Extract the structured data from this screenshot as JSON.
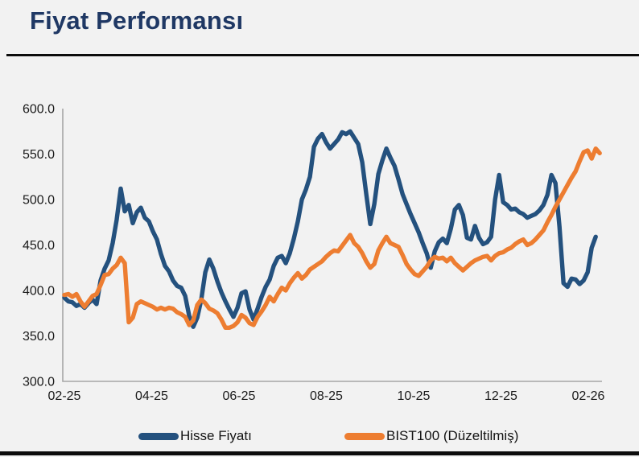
{
  "page": {
    "title": "Fiyat Performansı"
  },
  "chart_data": {
    "type": "line",
    "title": "Fiyat Performansı",
    "grid": false,
    "legend_position": "bottom",
    "colors": {
      "accent_title": "#1f3864",
      "axis_line": "#a6a6a6",
      "background": "#f2f2f2",
      "rule": "#0c0c0c"
    },
    "x_axis": {
      "tick_labels": [
        "02-25",
        "04-25",
        "06-25",
        "08-25",
        "10-25",
        "12-25",
        "02-26"
      ],
      "tick_months": [
        0,
        2,
        4,
        6,
        8,
        10,
        12
      ],
      "range_months": [
        0,
        12.3
      ]
    },
    "y_axis": {
      "tick_labels": [
        "300.0",
        "350.0",
        "400.0",
        "450.0",
        "500.0",
        "550.0",
        "600.0"
      ],
      "ylim": [
        300,
        600
      ],
      "tick_step": 50
    },
    "series": [
      {
        "name": "Hisse Fiyatı",
        "color": "#24517e",
        "x_start_month": 0,
        "x_step_month": 0.0922,
        "values": [
          392,
          388,
          387,
          383,
          385,
          381,
          386,
          390,
          385,
          411,
          424,
          433,
          452,
          478,
          512,
          487,
          494,
          474,
          486,
          491,
          480,
          476,
          465,
          456,
          440,
          427,
          421,
          411,
          405,
          403,
          394,
          372,
          360,
          370,
          390,
          420,
          434,
          424,
          410,
          398,
          388,
          379,
          371,
          381,
          397,
          399,
          379,
          368,
          380,
          393,
          404,
          412,
          427,
          436,
          438,
          430,
          441,
          457,
          476,
          500,
          511,
          525,
          558,
          567,
          572,
          563,
          556,
          561,
          566,
          574,
          572,
          575,
          568,
          561,
          541,
          506,
          473,
          495,
          528,
          543,
          556,
          546,
          537,
          522,
          506,
          495,
          484,
          474,
          464,
          452,
          441,
          425,
          443,
          453,
          457,
          452,
          468,
          489,
          494,
          483,
          458,
          456,
          471,
          458,
          451,
          453,
          459,
          500,
          527,
          497,
          494,
          489,
          490,
          486,
          484,
          480,
          482,
          484,
          488,
          494,
          505,
          527,
          518,
          470,
          408,
          404,
          413,
          412,
          407,
          411,
          420,
          447,
          459
        ]
      },
      {
        "name": "BIST100 (Düzeltilmiş)",
        "color": "#ed7d31",
        "x_start_month": 0,
        "x_step_month": 0.0922,
        "values": [
          395,
          396,
          393,
          396,
          388,
          382,
          388,
          394,
          396,
          406,
          417,
          418,
          424,
          428,
          436,
          430,
          365,
          370,
          385,
          388,
          386,
          384,
          382,
          379,
          381,
          379,
          381,
          380,
          376,
          374,
          371,
          362,
          367,
          384,
          390,
          386,
          380,
          378,
          375,
          368,
          359,
          359,
          361,
          365,
          373,
          370,
          364,
          362,
          371,
          377,
          384,
          393,
          388,
          396,
          403,
          400,
          408,
          414,
          419,
          413,
          417,
          423,
          426,
          429,
          432,
          437,
          441,
          444,
          443,
          449,
          455,
          461,
          452,
          448,
          441,
          432,
          425,
          429,
          444,
          452,
          459,
          452,
          450,
          448,
          439,
          429,
          423,
          418,
          416,
          421,
          426,
          433,
          437,
          435,
          436,
          432,
          436,
          430,
          426,
          422,
          426,
          430,
          433,
          435,
          437,
          438,
          433,
          438,
          441,
          442,
          445,
          447,
          451,
          454,
          456,
          450,
          452,
          456,
          461,
          466,
          475,
          483,
          492,
          500,
          508,
          516,
          524,
          531,
          542,
          552,
          554,
          545,
          556,
          551
        ]
      }
    ]
  }
}
